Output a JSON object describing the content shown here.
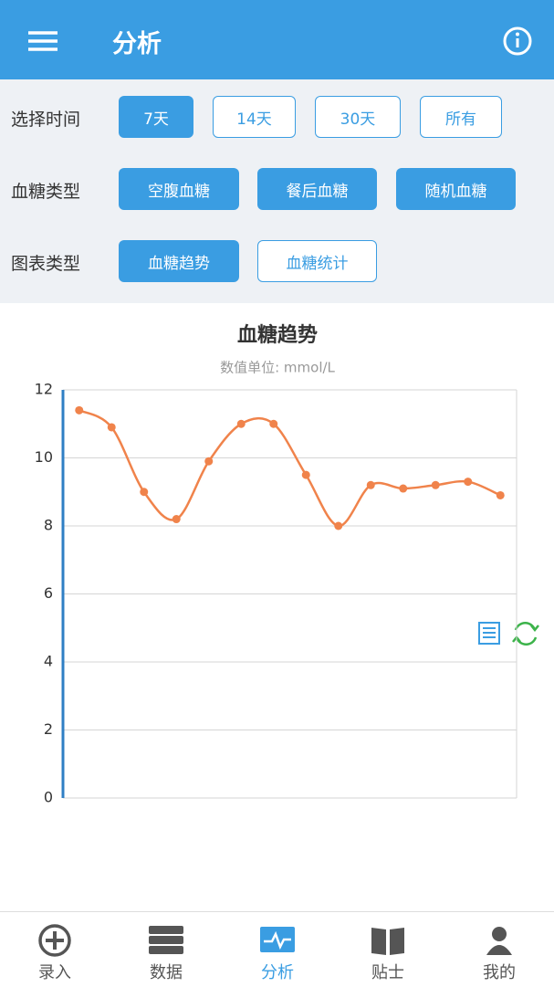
{
  "header": {
    "title": "分析"
  },
  "filters": [
    {
      "label": "选择时间",
      "options": [
        "7天",
        "14天",
        "30天",
        "所有"
      ],
      "selected": [
        0
      ]
    },
    {
      "label": "血糖类型",
      "options": [
        "空腹血糖",
        "餐后血糖",
        "随机血糖"
      ],
      "selected": [
        0,
        1,
        2
      ]
    },
    {
      "label": "图表类型",
      "options": [
        "血糖趋势",
        "血糖统计"
      ],
      "selected": [
        0
      ]
    }
  ],
  "chart_data": {
    "type": "line",
    "title": "血糖趋势",
    "subtitle": "数值单位: mmol/L",
    "values": [
      11.4,
      10.9,
      9.0,
      8.2,
      9.9,
      11.0,
      11.0,
      9.5,
      8.0,
      9.2,
      9.1,
      9.2,
      9.3,
      8.9
    ],
    "color": "#f0834b",
    "ylim": [
      0,
      12
    ],
    "yticks": [
      0,
      2,
      4,
      6,
      8,
      10,
      12
    ],
    "grid": true
  },
  "nav": {
    "items": [
      "录入",
      "数据",
      "分析",
      "贴士",
      "我的"
    ],
    "selected": 2
  }
}
